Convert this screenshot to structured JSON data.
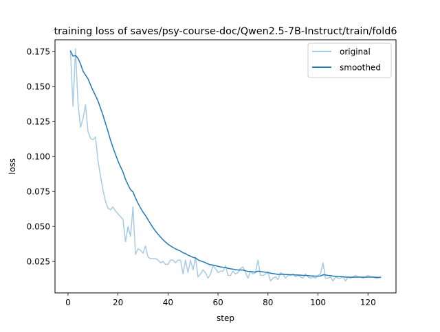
{
  "chart_data": {
    "type": "line",
    "title": "training loss of saves/psy-course-doc/Qwen2.5-7B-Instruct/train/fold6",
    "xlabel": "step",
    "ylabel": "loss",
    "xlim": [
      -5.2,
      131.2
    ],
    "ylim": [
      0.0025,
      0.1835
    ],
    "xticks": [
      0,
      20,
      40,
      60,
      80,
      100,
      120
    ],
    "xtick_labels": [
      "0",
      "20",
      "40",
      "60",
      "80",
      "100",
      "120"
    ],
    "yticks": [
      0.025,
      0.05,
      0.075,
      0.1,
      0.125,
      0.15,
      0.175
    ],
    "ytick_labels": [
      "0.025",
      "0.050",
      "0.075",
      "0.100",
      "0.125",
      "0.150",
      "0.175"
    ],
    "grid": false,
    "legend_position": "top-right",
    "series": [
      {
        "name": "original",
        "color": "#a6cbe3",
        "x": [
          1,
          2,
          3,
          4,
          5,
          6,
          7,
          8,
          9,
          10,
          11,
          12,
          13,
          14,
          15,
          16,
          17,
          18,
          19,
          20,
          21,
          22,
          23,
          24,
          25,
          26,
          27,
          28,
          29,
          30,
          31,
          32,
          33,
          34,
          35,
          36,
          37,
          38,
          39,
          40,
          41,
          42,
          43,
          44,
          45,
          46,
          47,
          48,
          49,
          50,
          51,
          52,
          53,
          54,
          55,
          56,
          57,
          58,
          59,
          60,
          61,
          62,
          63,
          64,
          65,
          66,
          67,
          68,
          69,
          70,
          71,
          72,
          73,
          74,
          75,
          76,
          77,
          78,
          79,
          80,
          81,
          82,
          83,
          84,
          85,
          86,
          87,
          88,
          89,
          90,
          91,
          92,
          93,
          94,
          95,
          96,
          97,
          98,
          99,
          100,
          101,
          102,
          103,
          104,
          105,
          106,
          107,
          108,
          109,
          110,
          111,
          112,
          113,
          114,
          115,
          116,
          117,
          118,
          119,
          120,
          121,
          122,
          123,
          124,
          125
        ],
        "y": [
          0.175,
          0.136,
          0.177,
          0.138,
          0.121,
          0.127,
          0.137,
          0.118,
          0.113,
          0.112,
          0.114,
          0.097,
          0.086,
          0.076,
          0.068,
          0.063,
          0.062,
          0.064,
          0.061,
          0.059,
          0.057,
          0.055,
          0.039,
          0.05,
          0.043,
          0.064,
          0.03,
          0.034,
          0.033,
          0.031,
          0.036,
          0.028,
          0.027,
          0.027,
          0.027,
          0.026,
          0.024,
          0.025,
          0.023,
          0.023,
          0.026,
          0.026,
          0.024,
          0.026,
          0.026,
          0.016,
          0.026,
          0.017,
          0.026,
          0.019,
          0.028,
          0.014,
          0.016,
          0.019,
          0.017,
          0.013,
          0.016,
          0.022,
          0.02,
          0.017,
          0.018,
          0.018,
          0.022,
          0.015,
          0.015,
          0.018,
          0.016,
          0.017,
          0.02,
          0.021,
          0.017,
          0.013,
          0.018,
          0.016,
          0.017,
          0.026,
          0.015,
          0.015,
          0.016,
          0.017,
          0.011,
          0.013,
          0.014,
          0.012,
          0.017,
          0.016,
          0.013,
          0.015,
          0.015,
          0.016,
          0.014,
          0.015,
          0.014,
          0.013,
          0.016,
          0.014,
          0.013,
          0.014,
          0.013,
          0.015,
          0.016,
          0.024,
          0.013,
          0.013,
          0.014,
          0.011,
          0.014,
          0.013,
          0.013,
          0.014,
          0.011,
          0.014,
          0.013,
          0.014,
          0.015,
          0.014,
          0.014,
          0.013,
          0.014,
          0.015,
          0.014,
          0.014,
          0.013,
          0.013,
          0.014
        ]
      },
      {
        "name": "smoothed",
        "color": "#1f77b4",
        "x": [
          1,
          2,
          3,
          4,
          5,
          6,
          7,
          8,
          9,
          10,
          11,
          12,
          13,
          14,
          15,
          16,
          17,
          18,
          19,
          20,
          21,
          22,
          23,
          24,
          25,
          26,
          27,
          28,
          29,
          30,
          31,
          32,
          33,
          34,
          35,
          36,
          37,
          38,
          39,
          40,
          41,
          42,
          43,
          44,
          45,
          46,
          47,
          48,
          49,
          50,
          51,
          52,
          53,
          54,
          55,
          56,
          57,
          58,
          59,
          60,
          61,
          62,
          63,
          64,
          65,
          66,
          67,
          68,
          69,
          70,
          71,
          72,
          73,
          74,
          75,
          76,
          77,
          78,
          79,
          80,
          81,
          82,
          83,
          84,
          85,
          86,
          87,
          88,
          89,
          90,
          91,
          92,
          93,
          94,
          95,
          96,
          97,
          98,
          99,
          100,
          101,
          102,
          103,
          104,
          105,
          106,
          107,
          108,
          109,
          110,
          111,
          112,
          113,
          114,
          115,
          116,
          117,
          118,
          119,
          120,
          121,
          122,
          123,
          124,
          125
        ],
        "y": [
          0.1755,
          0.1718,
          0.1723,
          0.1702,
          0.1663,
          0.1611,
          0.1583,
          0.1556,
          0.1513,
          0.1472,
          0.1436,
          0.1397,
          0.1347,
          0.1296,
          0.1237,
          0.118,
          0.1118,
          0.1064,
          0.1015,
          0.0968,
          0.0928,
          0.0889,
          0.0837,
          0.0799,
          0.0763,
          0.0747,
          0.0703,
          0.0666,
          0.0633,
          0.0603,
          0.0578,
          0.0549,
          0.0519,
          0.0492,
          0.0467,
          0.0445,
          0.0425,
          0.0405,
          0.0389,
          0.0373,
          0.0361,
          0.035,
          0.034,
          0.0332,
          0.0324,
          0.0312,
          0.0306,
          0.0295,
          0.0288,
          0.0279,
          0.0275,
          0.0262,
          0.0254,
          0.0248,
          0.0241,
          0.0232,
          0.0226,
          0.0224,
          0.022,
          0.0215,
          0.0211,
          0.0208,
          0.0207,
          0.0201,
          0.0197,
          0.0195,
          0.0192,
          0.0189,
          0.0189,
          0.0188,
          0.0184,
          0.0178,
          0.0178,
          0.0175,
          0.0174,
          0.0181,
          0.0178,
          0.0175,
          0.0173,
          0.0172,
          0.0166,
          0.0163,
          0.0161,
          0.0157,
          0.0158,
          0.0158,
          0.0156,
          0.0156,
          0.0155,
          0.0155,
          0.0153,
          0.0153,
          0.0152,
          0.015,
          0.015,
          0.0149,
          0.0147,
          0.0146,
          0.0145,
          0.0145,
          0.0146,
          0.0155,
          0.0153,
          0.015,
          0.0149,
          0.0145,
          0.0144,
          0.0142,
          0.0141,
          0.0141,
          0.0138,
          0.0138,
          0.0137,
          0.0137,
          0.0138,
          0.0138,
          0.0138,
          0.0137,
          0.0137,
          0.0138,
          0.0138,
          0.0138,
          0.0137,
          0.0136,
          0.0136
        ]
      }
    ]
  }
}
